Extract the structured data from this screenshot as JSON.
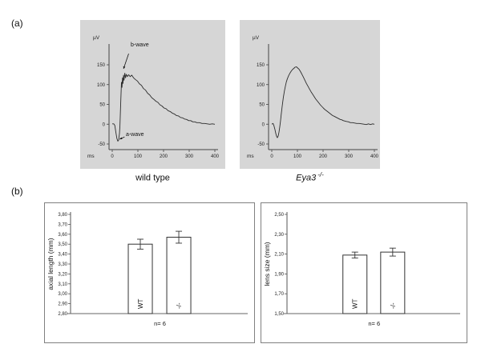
{
  "figure": {
    "panel_a_label": "(a)",
    "panel_b_label": "(b)"
  },
  "chart_data": [
    {
      "type": "line",
      "name": "erg-wild-type",
      "caption": "wild type",
      "caption_sup": "",
      "y_unit": "µV",
      "x_unit": "ms",
      "y_ticks": [
        150,
        100,
        50,
        0,
        -50
      ],
      "x_ticks": [
        0,
        100,
        200,
        300,
        400
      ],
      "y_range": [
        -50,
        150
      ],
      "x_range": [
        0,
        400
      ],
      "annotations": [
        {
          "text": "b-wave",
          "text_ms": 72,
          "text_uv": 196,
          "arrow_from_ms": 64,
          "arrow_from_uv": 178,
          "arrow_to_ms": 44,
          "arrow_to_uv": 140
        },
        {
          "text": "a-wave",
          "text_ms": 53,
          "text_uv": -30,
          "arrow_from_ms": 48,
          "arrow_from_uv": -32,
          "arrow_to_ms": 29,
          "arrow_to_uv": -38
        }
      ],
      "trace": [
        [
          0,
          1
        ],
        [
          6,
          1
        ],
        [
          10,
          -3
        ],
        [
          14,
          -20
        ],
        [
          18,
          -36
        ],
        [
          22,
          -43
        ],
        [
          25,
          -40
        ],
        [
          28,
          -24
        ],
        [
          30,
          -4
        ],
        [
          32,
          32
        ],
        [
          34,
          72
        ],
        [
          36,
          106
        ],
        [
          38,
          93
        ],
        [
          40,
          117
        ],
        [
          42,
          103
        ],
        [
          44,
          124
        ],
        [
          46,
          111
        ],
        [
          49,
          129
        ],
        [
          52,
          117
        ],
        [
          55,
          126
        ],
        [
          59,
          120
        ],
        [
          64,
          125
        ],
        [
          70,
          120
        ],
        [
          76,
          124
        ],
        [
          83,
          117
        ],
        [
          90,
          113
        ],
        [
          98,
          109
        ],
        [
          106,
          102
        ],
        [
          114,
          98
        ],
        [
          122,
          90
        ],
        [
          130,
          86
        ],
        [
          138,
          78
        ],
        [
          146,
          74
        ],
        [
          154,
          67
        ],
        [
          162,
          63
        ],
        [
          170,
          58
        ],
        [
          178,
          55
        ],
        [
          186,
          49
        ],
        [
          194,
          46
        ],
        [
          202,
          41
        ],
        [
          210,
          39
        ],
        [
          218,
          34
        ],
        [
          226,
          32
        ],
        [
          234,
          28
        ],
        [
          242,
          26
        ],
        [
          250,
          22
        ],
        [
          258,
          21
        ],
        [
          266,
          17
        ],
        [
          274,
          16
        ],
        [
          282,
          13
        ],
        [
          290,
          12
        ],
        [
          298,
          9
        ],
        [
          306,
          9
        ],
        [
          314,
          6
        ],
        [
          322,
          6
        ],
        [
          330,
          4
        ],
        [
          340,
          4
        ],
        [
          350,
          2
        ],
        [
          360,
          2
        ],
        [
          370,
          1
        ],
        [
          380,
          0
        ],
        [
          390,
          1
        ],
        [
          400,
          0
        ]
      ]
    },
    {
      "type": "line",
      "name": "erg-eya3",
      "caption": "Eya3",
      "caption_sup": "-/-",
      "y_unit": "µV",
      "x_unit": "ms",
      "y_ticks": [
        150,
        100,
        50,
        0,
        -50
      ],
      "x_ticks": [
        0,
        100,
        200,
        300,
        400
      ],
      "y_range": [
        -50,
        150
      ],
      "x_range": [
        0,
        400
      ],
      "annotations": [],
      "trace": [
        [
          0,
          0
        ],
        [
          5,
          2
        ],
        [
          8,
          -3
        ],
        [
          12,
          -12
        ],
        [
          16,
          -24
        ],
        [
          19,
          -31
        ],
        [
          22,
          -34
        ],
        [
          25,
          -30
        ],
        [
          28,
          -20
        ],
        [
          31,
          -8
        ],
        [
          34,
          8
        ],
        [
          37,
          25
        ],
        [
          41,
          47
        ],
        [
          45,
          67
        ],
        [
          49,
          83
        ],
        [
          53,
          96
        ],
        [
          57,
          107
        ],
        [
          61,
          115
        ],
        [
          66,
          123
        ],
        [
          71,
          129
        ],
        [
          76,
          134
        ],
        [
          81,
          138
        ],
        [
          86,
          141
        ],
        [
          91,
          144
        ],
        [
          96,
          145
        ],
        [
          101,
          142
        ],
        [
          106,
          139
        ],
        [
          111,
          134
        ],
        [
          117,
          127
        ],
        [
          123,
          119
        ],
        [
          129,
          111
        ],
        [
          135,
          103
        ],
        [
          141,
          96
        ],
        [
          147,
          89
        ],
        [
          153,
          82
        ],
        [
          159,
          76
        ],
        [
          165,
          70
        ],
        [
          171,
          64
        ],
        [
          177,
          59
        ],
        [
          183,
          54
        ],
        [
          189,
          49
        ],
        [
          195,
          45
        ],
        [
          201,
          41
        ],
        [
          207,
          37
        ],
        [
          213,
          34
        ],
        [
          219,
          31
        ],
        [
          225,
          28
        ],
        [
          231,
          25
        ],
        [
          237,
          22
        ],
        [
          243,
          20
        ],
        [
          249,
          18
        ],
        [
          255,
          16
        ],
        [
          261,
          14
        ],
        [
          267,
          12
        ],
        [
          273,
          11
        ],
        [
          279,
          9
        ],
        [
          285,
          8
        ],
        [
          291,
          7
        ],
        [
          299,
          6
        ],
        [
          307,
          4
        ],
        [
          315,
          4
        ],
        [
          323,
          3
        ],
        [
          331,
          2
        ],
        [
          341,
          2
        ],
        [
          351,
          1
        ],
        [
          361,
          0
        ],
        [
          369,
          -1
        ],
        [
          377,
          1
        ],
        [
          385,
          -1
        ],
        [
          393,
          1
        ],
        [
          400,
          0
        ]
      ]
    },
    {
      "type": "bar",
      "name": "axial-length",
      "ylabel": "axial length (mm)",
      "y_min": 2.8,
      "y_max": 3.8,
      "tick_labels": [
        "3,80",
        "3,70",
        "3,60",
        "3,50",
        "3,40",
        "3,30",
        "3,20",
        "3,10",
        "3,00",
        "2,90",
        "2,80"
      ],
      "bars": [
        {
          "label": "WT",
          "value": 3.5,
          "error": 0.05
        },
        {
          "label": "-/-",
          "value": 3.57,
          "error": 0.06
        }
      ],
      "note": "n= 6"
    },
    {
      "type": "bar",
      "name": "lens-size",
      "ylabel": "lens size (mm)",
      "y_min": 1.5,
      "y_max": 2.5,
      "tick_labels": [
        "2,50",
        "2,30",
        "2,10",
        "1,90",
        "1,70",
        "1,50"
      ],
      "bars": [
        {
          "label": "WT",
          "value": 2.09,
          "error": 0.03
        },
        {
          "label": "-/-",
          "value": 2.12,
          "error": 0.04
        }
      ],
      "note": "n= 6"
    }
  ]
}
